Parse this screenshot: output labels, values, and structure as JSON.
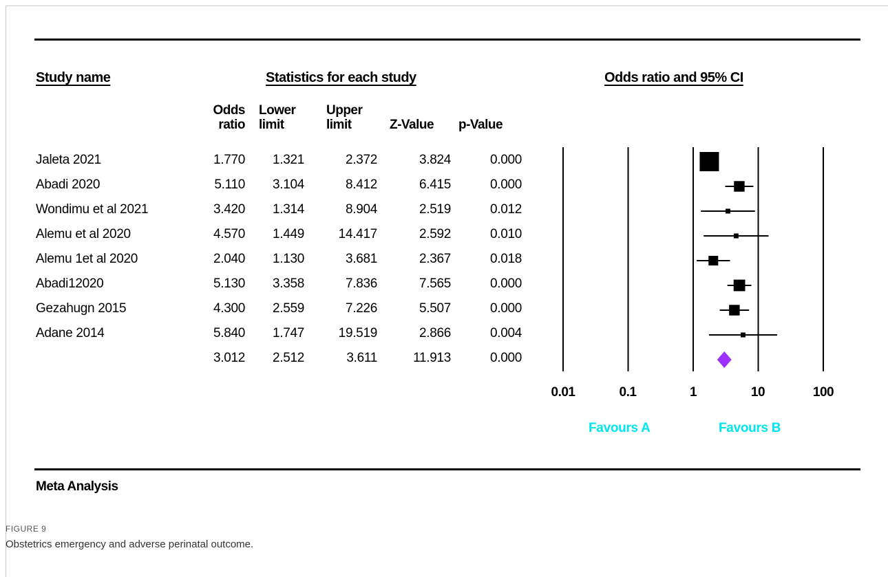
{
  "headers": {
    "study_name": "Study name",
    "statistics": "Statistics for each study",
    "odds_ratio_ci": "Odds ratio and 95% CI"
  },
  "columns": [
    {
      "line1": "Odds",
      "line2": "ratio"
    },
    {
      "line1": "Lower",
      "line2": "limit"
    },
    {
      "line1": "Upper",
      "line2": "limit"
    },
    {
      "line1": "",
      "line2": "Z-Value"
    },
    {
      "line1": "",
      "line2": "p-Value"
    }
  ],
  "rows": [
    {
      "study": "Jaleta 2021",
      "or": "1.770",
      "lower": "1.321",
      "upper": "2.372",
      "z": "3.824",
      "p": "0.000"
    },
    {
      "study": "Abadi 2020",
      "or": "5.110",
      "lower": "3.104",
      "upper": "8.412",
      "z": "6.415",
      "p": "0.000"
    },
    {
      "study": "Wondimu et al 2021",
      "or": "3.420",
      "lower": "1.314",
      "upper": "8.904",
      "z": "2.519",
      "p": "0.012"
    },
    {
      "study": "Alemu et al 2020",
      "or": "4.570",
      "lower": "1.449",
      "upper": "14.417",
      "z": "2.592",
      "p": "0.010"
    },
    {
      "study": "Alemu 1et al 2020",
      "or": "2.040",
      "lower": "1.130",
      "upper": "3.681",
      "z": "2.367",
      "p": "0.018"
    },
    {
      "study": "Abadi12020",
      "or": "5.130",
      "lower": "3.358",
      "upper": "7.836",
      "z": "7.565",
      "p": "0.000"
    },
    {
      "study": "Gezahugn 2015",
      "or": "4.300",
      "lower": "2.559",
      "upper": "7.226",
      "z": "5.507",
      "p": "0.000"
    },
    {
      "study": "Adane 2014",
      "or": "5.840",
      "lower": "1.747",
      "upper": "19.519",
      "z": "2.866",
      "p": "0.004"
    }
  ],
  "summary": {
    "study": "",
    "or": "3.012",
    "lower": "2.512",
    "upper": "3.611",
    "z": "11.913",
    "p": "0.000"
  },
  "axis_ticks": [
    "0.01",
    "0.1",
    "1",
    "10",
    "100"
  ],
  "favours": {
    "left": "Favours A",
    "right": "Favours B"
  },
  "footer_label": "Meta Analysis",
  "figure_label": "FIGURE 9",
  "caption": "Obstetrics emergency and adverse perinatal outcome.",
  "colors": {
    "marker": "#000000",
    "summary": "#9b30ff",
    "favours": "#00e5ee"
  },
  "chart_data": {
    "type": "scatter",
    "subtype": "forest-plot",
    "scale": "log",
    "xlim": [
      0.01,
      100
    ],
    "title": "Odds ratio and 95% CI",
    "points": [
      {
        "study": "Jaleta 2021",
        "or": 1.77,
        "lower": 1.321,
        "upper": 2.372,
        "weight": 1.0
      },
      {
        "study": "Abadi 2020",
        "or": 5.11,
        "lower": 3.104,
        "upper": 8.412,
        "weight": 0.55
      },
      {
        "study": "Wondimu et al 2021",
        "or": 3.42,
        "lower": 1.314,
        "upper": 8.904,
        "weight": 0.25
      },
      {
        "study": "Alemu et al 2020",
        "or": 4.57,
        "lower": 1.449,
        "upper": 14.417,
        "weight": 0.25
      },
      {
        "study": "Alemu 1et al 2020",
        "or": 2.04,
        "lower": 1.13,
        "upper": 3.681,
        "weight": 0.5
      },
      {
        "study": "Abadi12020",
        "or": 5.13,
        "lower": 3.358,
        "upper": 7.836,
        "weight": 0.6
      },
      {
        "study": "Gezahugn 2015",
        "or": 4.3,
        "lower": 2.559,
        "upper": 7.226,
        "weight": 0.55
      },
      {
        "study": "Adane 2014",
        "or": 5.84,
        "lower": 1.747,
        "upper": 19.519,
        "weight": 0.25
      }
    ],
    "summary": {
      "or": 3.012,
      "lower": 2.512,
      "upper": 3.611
    }
  }
}
